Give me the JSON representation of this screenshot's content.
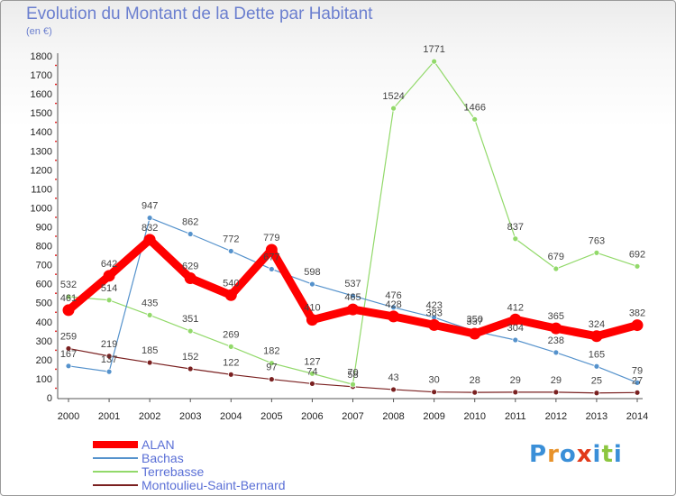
{
  "title": "Evolution du Montant de la Dette par Habitant",
  "unit": "(en €)",
  "logo": {
    "text": "Proxiti",
    "colors": [
      "#3a8fd8",
      "#e8922a",
      "#3a8fd8",
      "#e23a1a",
      "#3a8fd8",
      "#8cc63f",
      "#3a8fd8"
    ]
  },
  "chart_data": {
    "type": "line",
    "x": [
      "2000",
      "2001",
      "2002",
      "2003",
      "2004",
      "2005",
      "2006",
      "2007",
      "2008",
      "2009",
      "2010",
      "2011",
      "2012",
      "2013",
      "2014"
    ],
    "ylim": [
      0,
      1800
    ],
    "yticks": [
      0,
      100,
      200,
      300,
      400,
      500,
      600,
      700,
      800,
      900,
      1000,
      1100,
      1200,
      1300,
      1400,
      1500,
      1600,
      1700,
      1800
    ],
    "grid": false,
    "legend": "bottom-left",
    "series": [
      {
        "name": "ALAN",
        "color": "#ff0000",
        "values": [
          461,
          642,
          832,
          629,
          540,
          779,
          410,
          465,
          428,
          383,
          337,
          412,
          365,
          324,
          382
        ],
        "labels": [
          "461",
          "642",
          "832",
          "629",
          "540",
          "779",
          "410",
          "465",
          "428",
          "383",
          "337",
          "412",
          "365",
          "324",
          "382"
        ]
      },
      {
        "name": "Bachas",
        "color": "#5592cc",
        "values": [
          167,
          137,
          947,
          862,
          772,
          677,
          598,
          537,
          476,
          423,
          350,
          304,
          238,
          165,
          79
        ],
        "labels": [
          "167",
          "137",
          "947",
          "862",
          "772",
          "677",
          "598",
          "537",
          "476",
          "423",
          "350",
          "304",
          "238",
          "165",
          "79"
        ]
      },
      {
        "name": "Terrebasse",
        "color": "#92d96a",
        "values": [
          532,
          514,
          435,
          351,
          269,
          182,
          127,
          70,
          1524,
          1771,
          1466,
          837,
          679,
          763,
          692
        ],
        "labels": [
          "532",
          "514",
          "435",
          "351",
          "269",
          "182",
          "127",
          "70",
          "1524",
          "1771",
          "1466",
          "837",
          "679",
          "763",
          "692"
        ]
      },
      {
        "name": "Montoulieu-Saint-Bernard",
        "color": "#7a2020",
        "values": [
          259,
          219,
          185,
          152,
          122,
          97,
          74,
          58,
          43,
          30,
          28,
          29,
          29,
          25,
          27
        ],
        "labels": [
          "259",
          "219",
          "185",
          "152",
          "122",
          "97",
          "74",
          "58",
          "43",
          "30",
          "28",
          "29",
          "29",
          "25",
          "27"
        ]
      }
    ]
  }
}
